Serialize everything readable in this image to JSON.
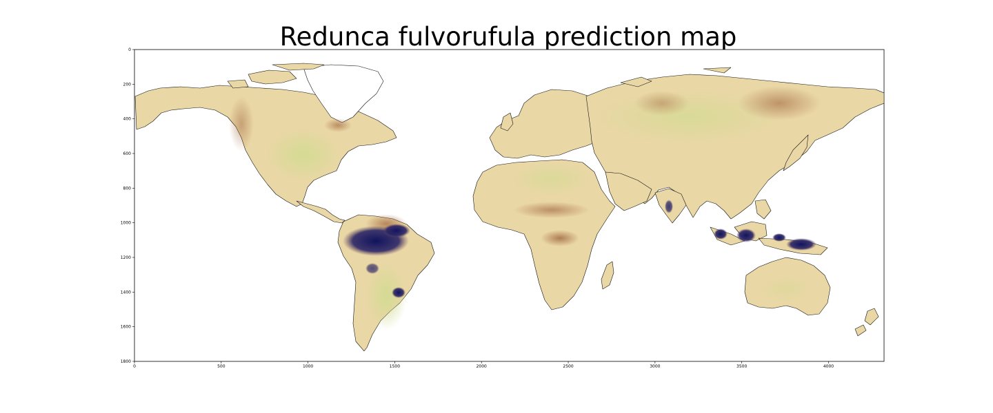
{
  "title": "Redunca fulvorufula prediction map",
  "x_axis": {
    "ticks": [
      "0",
      "500",
      "1000",
      "1500",
      "2000",
      "2500",
      "3000",
      "3500",
      "4000"
    ]
  },
  "y_axis": {
    "ticks": [
      "0",
      "200",
      "400",
      "600",
      "800",
      "1000",
      "1200",
      "1400",
      "1600",
      "1800"
    ]
  },
  "colors": {
    "land_base": "#ead7a6",
    "land_green": "#d8dc96",
    "land_brown": "#b9855a",
    "land_dark_brown": "#8c5a36",
    "high_prediction": "#12135e",
    "coast": "#111111",
    "ocean": "#ffffff"
  }
}
